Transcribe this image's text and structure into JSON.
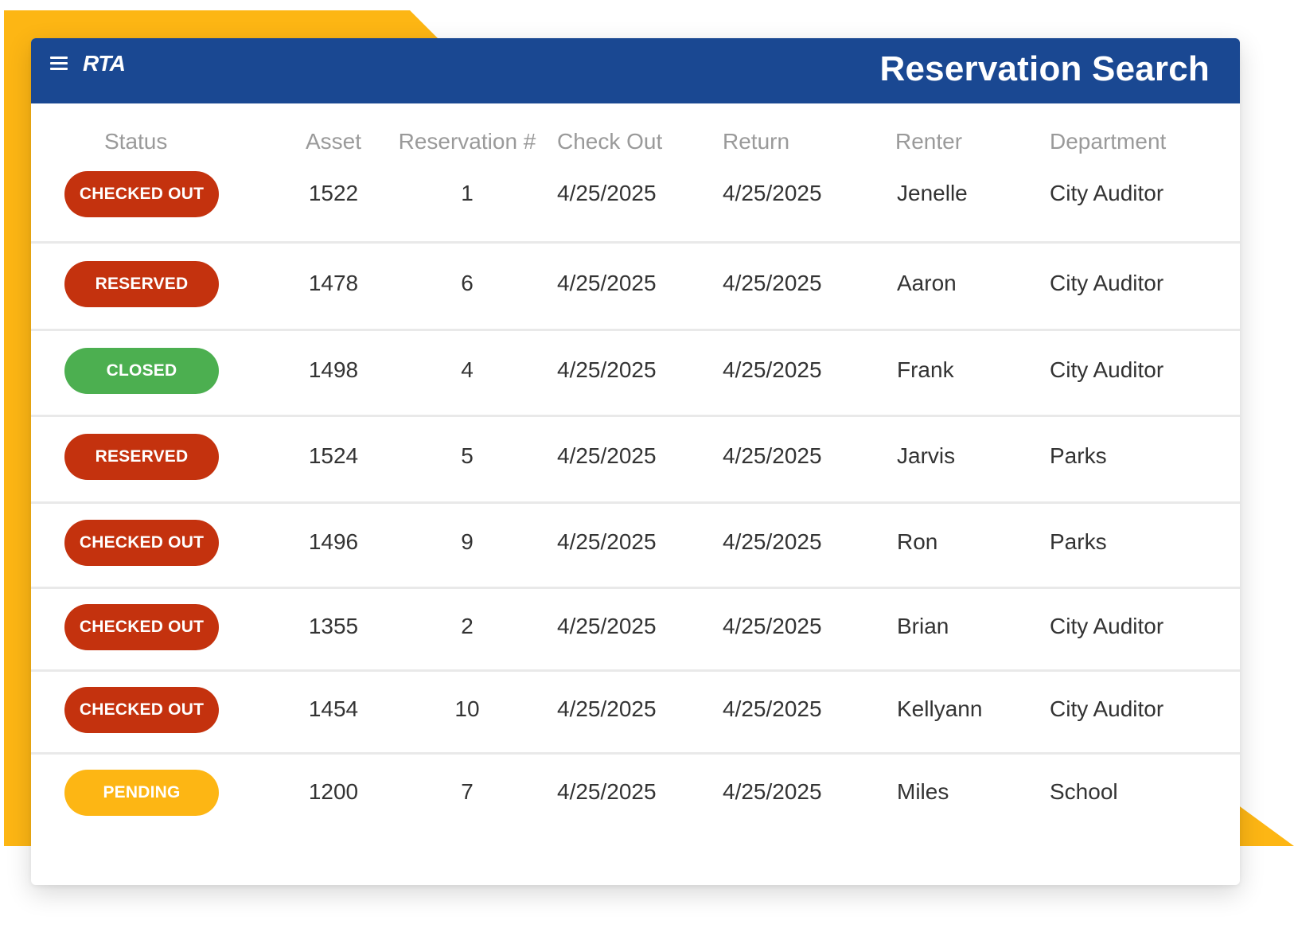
{
  "app": {
    "logo": "RTA",
    "title": "Reservation Search"
  },
  "colors": {
    "brand_blue": "#1a4892",
    "accent_yellow": "#fdb614",
    "status_red": "#c4320e",
    "status_green": "#4caf50",
    "status_yellow": "#fdb614"
  },
  "icons": {
    "menu": "hamburger-menu-icon"
  },
  "table": {
    "headers": [
      "Status",
      "Asset",
      "Reservation #",
      "Check Out",
      "Return",
      "Renter",
      "Department"
    ],
    "rows": [
      {
        "status": "CHECKED OUT",
        "status_color": "#c4320e",
        "asset": "1522",
        "reservation": "1",
        "check_out": "4/25/2025",
        "return": "4/25/2025",
        "renter": "Jenelle",
        "department": "City Auditor"
      },
      {
        "status": "RESERVED",
        "status_color": "#c4320e",
        "asset": "1478",
        "reservation": "6",
        "check_out": "4/25/2025",
        "return": "4/25/2025",
        "renter": "Aaron",
        "department": "City Auditor"
      },
      {
        "status": "CLOSED",
        "status_color": "#4caf50",
        "asset": "1498",
        "reservation": "4",
        "check_out": "4/25/2025",
        "return": "4/25/2025",
        "renter": "Frank",
        "department": "City Auditor"
      },
      {
        "status": "RESERVED",
        "status_color": "#c4320e",
        "asset": "1524",
        "reservation": "5",
        "check_out": "4/25/2025",
        "return": "4/25/2025",
        "renter": "Jarvis",
        "department": "Parks"
      },
      {
        "status": "CHECKED OUT",
        "status_color": "#c4320e",
        "asset": "1496",
        "reservation": "9",
        "check_out": "4/25/2025",
        "return": "4/25/2025",
        "renter": "Ron",
        "department": "Parks"
      },
      {
        "status": "CHECKED OUT",
        "status_color": "#c4320e",
        "asset": "1355",
        "reservation": "2",
        "check_out": "4/25/2025",
        "return": "4/25/2025",
        "renter": "Brian",
        "department": "City Auditor"
      },
      {
        "status": "CHECKED OUT",
        "status_color": "#c4320e",
        "asset": "1454",
        "reservation": "10",
        "check_out": "4/25/2025",
        "return": "4/25/2025",
        "renter": "Kellyann",
        "department": "City Auditor"
      },
      {
        "status": "PENDING",
        "status_color": "#fdb614",
        "asset": "1200",
        "reservation": "7",
        "check_out": "4/25/2025",
        "return": "4/25/2025",
        "renter": "Miles",
        "department": "School"
      }
    ]
  }
}
